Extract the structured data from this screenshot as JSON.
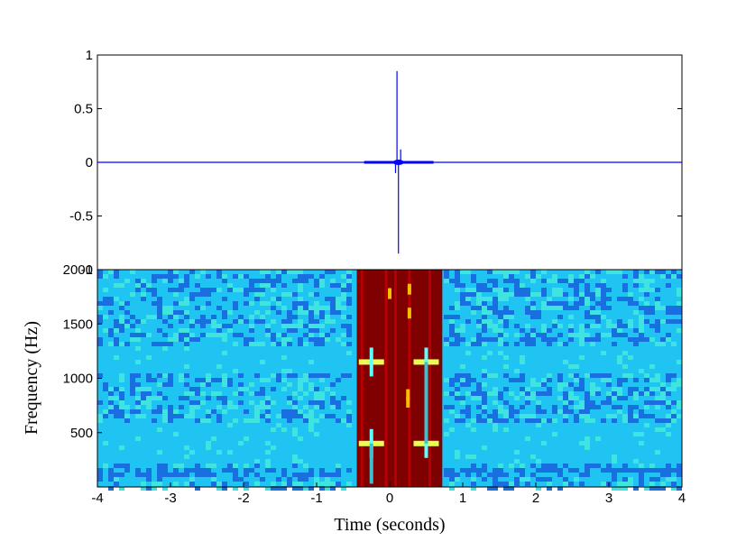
{
  "chart_data": [
    {
      "type": "line",
      "panel": "waveform",
      "xlim": [
        -4,
        4
      ],
      "ylim": [
        -1,
        1
      ],
      "x_tick_labels": [
        "-4",
        "-3",
        "-2",
        "-1",
        "0",
        "1",
        "2",
        "3",
        "4"
      ],
      "y_tick_labels": [
        "1",
        "0.5",
        "0",
        "-0.5",
        "-1"
      ],
      "y_tick_values": [
        1,
        0.5,
        0,
        -0.5,
        -1
      ],
      "series": [
        {
          "color": "#0000ff",
          "x": [
            -4,
            -0.35,
            -0.35,
            0.6,
            0.6,
            4
          ],
          "y": [
            0,
            0,
            0,
            0,
            0,
            0
          ],
          "spikes": [
            {
              "x": 0.1,
              "y": 0.85
            },
            {
              "x": 0.12,
              "y": -0.85
            },
            {
              "x": 0.15,
              "y": 0.12
            },
            {
              "x": 0.08,
              "y": -0.1
            }
          ]
        }
      ],
      "grid": false
    },
    {
      "type": "heatmap",
      "panel": "spectrogram",
      "xlabel": "Time (seconds)",
      "ylabel": "Frequency (Hz)",
      "xlim": [
        -4,
        4
      ],
      "ylim": [
        0,
        2000
      ],
      "x_tick_labels": [
        "-4",
        "-3",
        "-2",
        "-1",
        "0",
        "1",
        "2",
        "3",
        "4"
      ],
      "x_tick_values": [
        -4,
        -3,
        -2,
        -1,
        0,
        1,
        2,
        3,
        4
      ],
      "y_tick_labels": [
        "2000",
        "1500",
        "1000",
        "500"
      ],
      "y_tick_values": [
        2000,
        1500,
        1000,
        500
      ],
      "high_energy_interval": [
        -0.45,
        0.72
      ],
      "bright_frequencies": [
        1150,
        400
      ],
      "colors": {
        "background": "#1fc4f2",
        "noise_dark": "#1a6fe0",
        "noise_light": "#3fe3e0",
        "hot": "#7f0000",
        "yellow": "#e6ff50",
        "cyan": "#60ffff"
      }
    }
  ]
}
